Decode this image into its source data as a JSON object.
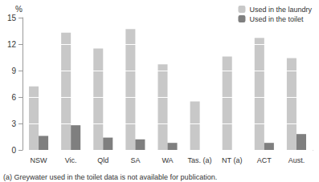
{
  "chart_data": {
    "type": "bar",
    "y_label": "%",
    "categories": [
      "NSW",
      "Vic.",
      "Qld",
      "SA",
      "WA",
      "Tas. (a)",
      "NT (a)",
      "ACT",
      "Aust."
    ],
    "series": [
      {
        "name": "Used in the laundry",
        "color": "#c8c8c8",
        "values": [
          7.2,
          13.3,
          11.5,
          13.7,
          9.7,
          5.5,
          10.6,
          12.7,
          10.4
        ]
      },
      {
        "name": "Used in the toilet",
        "color": "#7f7f7f",
        "values": [
          1.6,
          2.8,
          1.4,
          1.2,
          0.8,
          null,
          null,
          0.8,
          1.8
        ]
      }
    ],
    "ylim": [
      0,
      15
    ],
    "yticks": [
      0,
      3,
      6,
      9,
      12,
      15
    ],
    "grid": true,
    "legend": "top-right",
    "annotations": [
      "(a) Greywater used in the toilet data is not available for publication."
    ]
  }
}
